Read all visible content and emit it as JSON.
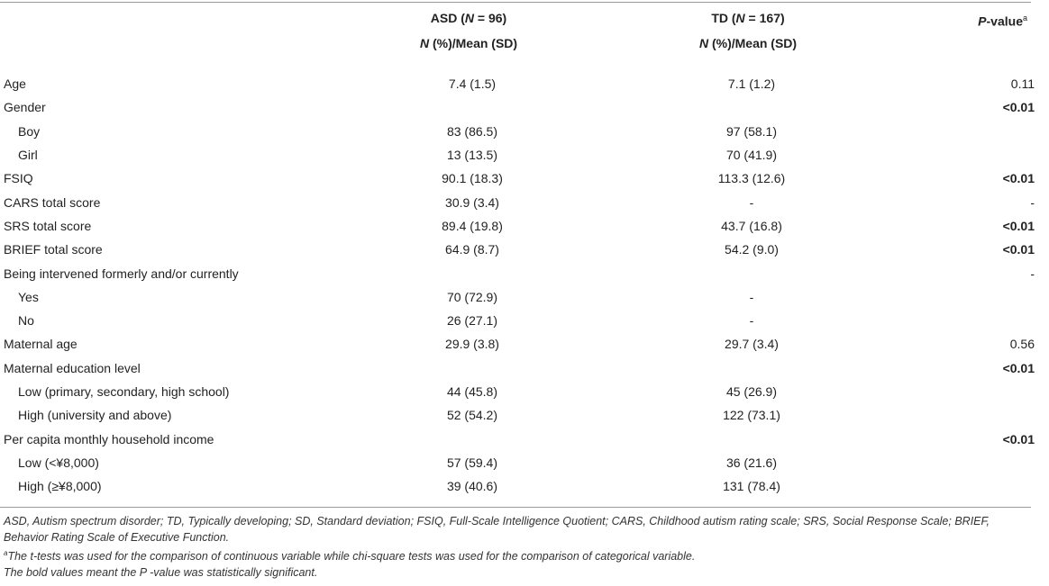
{
  "header": {
    "asd_label": "ASD (",
    "asd_n_symbol": "N",
    "asd_n_value": " = 96)",
    "td_label": "TD (",
    "td_n_symbol": "N",
    "td_n_value": " = 167)",
    "sub_n_symbol": "N",
    "sub_text": " (%)/Mean (SD)",
    "pvalue_symbol": "P",
    "pvalue_text": "-value",
    "pvalue_sup": "a"
  },
  "rows": [
    {
      "label": "Age",
      "indent": false,
      "asd": "7.4 (1.5)",
      "td": "7.1 (1.2)",
      "p": "0.11",
      "bold": false
    },
    {
      "label": "Gender",
      "indent": false,
      "asd": "",
      "td": "",
      "p": "<0.01",
      "bold": true
    },
    {
      "label": "Boy",
      "indent": true,
      "asd": "83 (86.5)",
      "td": "97 (58.1)",
      "p": "",
      "bold": false
    },
    {
      "label": "Girl",
      "indent": true,
      "asd": "13 (13.5)",
      "td": "70 (41.9)",
      "p": "",
      "bold": false
    },
    {
      "label": "FSIQ",
      "indent": false,
      "asd": "90.1 (18.3)",
      "td": "113.3 (12.6)",
      "p": "<0.01",
      "bold": true
    },
    {
      "label": "CARS total score",
      "indent": false,
      "asd": "30.9 (3.4)",
      "td": "-",
      "p": "-",
      "bold": false
    },
    {
      "label": "SRS total score",
      "indent": false,
      "asd": "89.4 (19.8)",
      "td": "43.7 (16.8)",
      "p": "<0.01",
      "bold": true
    },
    {
      "label": "BRIEF total score",
      "indent": false,
      "asd": "64.9 (8.7)",
      "td": "54.2 (9.0)",
      "p": "<0.01",
      "bold": true
    },
    {
      "label": "Being intervened formerly and/or currently",
      "indent": false,
      "asd": "",
      "td": "",
      "p": "-",
      "bold": false
    },
    {
      "label": "Yes",
      "indent": true,
      "asd": "70 (72.9)",
      "td": "-",
      "p": "",
      "bold": false
    },
    {
      "label": "No",
      "indent": true,
      "asd": "26 (27.1)",
      "td": "-",
      "p": "",
      "bold": false
    },
    {
      "label": "Maternal age",
      "indent": false,
      "asd": "29.9 (3.8)",
      "td": "29.7 (3.4)",
      "p": "0.56",
      "bold": false
    },
    {
      "label": "Maternal education level",
      "indent": false,
      "asd": "",
      "td": "",
      "p": "<0.01",
      "bold": true
    },
    {
      "label": "Low (primary, secondary, high school)",
      "indent": true,
      "asd": "44 (45.8)",
      "td": "45 (26.9)",
      "p": "",
      "bold": false
    },
    {
      "label": "High (university and above)",
      "indent": true,
      "asd": "52 (54.2)",
      "td": "122 (73.1)",
      "p": "",
      "bold": false
    },
    {
      "label": "Per capita monthly household income",
      "indent": false,
      "asd": "",
      "td": "",
      "p": "<0.01",
      "bold": true
    },
    {
      "label": "Low (<¥8,000)",
      "indent": true,
      "asd": "57 (59.4)",
      "td": "36 (21.6)",
      "p": "",
      "bold": false
    },
    {
      "label": "High (≥¥8,000)",
      "indent": true,
      "asd": "39 (40.6)",
      "td": "131 (78.4)",
      "p": "",
      "bold": false
    }
  ],
  "notes": {
    "abbrev": "ASD, Autism spectrum disorder; TD, Typically developing; SD, Standard deviation; FSIQ, Full-Scale Intelligence Quotient; CARS, Childhood autism rating scale; SRS, Social Response Scale; BRIEF, Behavior Rating Scale of Executive Function.",
    "footnote_mark": "a",
    "footnote_a": "The t-tests was used for the comparison of continuous variable while chi-square tests was used for the comparison of categorical variable.",
    "bold_note": "The bold values meant the P -value was statistically significant."
  }
}
